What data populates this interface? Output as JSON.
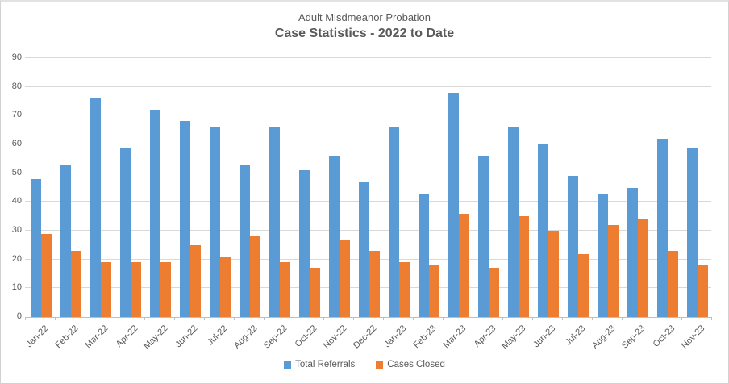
{
  "chart_data": {
    "type": "bar",
    "title": "Adult Misdmeanor Probation",
    "subtitle": "Case Statistics - 2022 to Date",
    "categories": [
      "Jan-22",
      "Feb-22",
      "Mar-22",
      "Apr-22",
      "May-22",
      "Jun-22",
      "Jul-22",
      "Aug-22",
      "Sep-22",
      "Oct-22",
      "Nov-22",
      "Dec-22",
      "Jan-23",
      "Feb-23",
      "Mar-23",
      "Apr-23",
      "May-23",
      "Jun-23",
      "Jul-23",
      "Aug-23",
      "Sep-23",
      "Oct-23",
      "Nov-23"
    ],
    "series": [
      {
        "name": "Total Referrals",
        "color": "#5B9BD5",
        "values": [
          48,
          53,
          76,
          59,
          72,
          68,
          66,
          53,
          66,
          51,
          56,
          47,
          66,
          43,
          78,
          56,
          66,
          60,
          49,
          43,
          45,
          62,
          59
        ]
      },
      {
        "name": "Cases Closed",
        "color": "#ED7D31",
        "values": [
          29,
          23,
          19,
          19,
          19,
          25,
          21,
          28,
          19,
          17,
          27,
          23,
          19,
          18,
          36,
          17,
          35,
          30,
          22,
          32,
          34,
          23,
          18
        ]
      }
    ],
    "xlabel": "",
    "ylabel": "",
    "ylim": [
      0,
      90
    ],
    "y_ticks": [
      0,
      10,
      20,
      30,
      40,
      50,
      60,
      70,
      80,
      90
    ],
    "grid": true,
    "legend_position": "bottom",
    "colors": {
      "grid": "#D9D9D9",
      "axis": "#BFBFBF",
      "text": "#595959"
    }
  }
}
